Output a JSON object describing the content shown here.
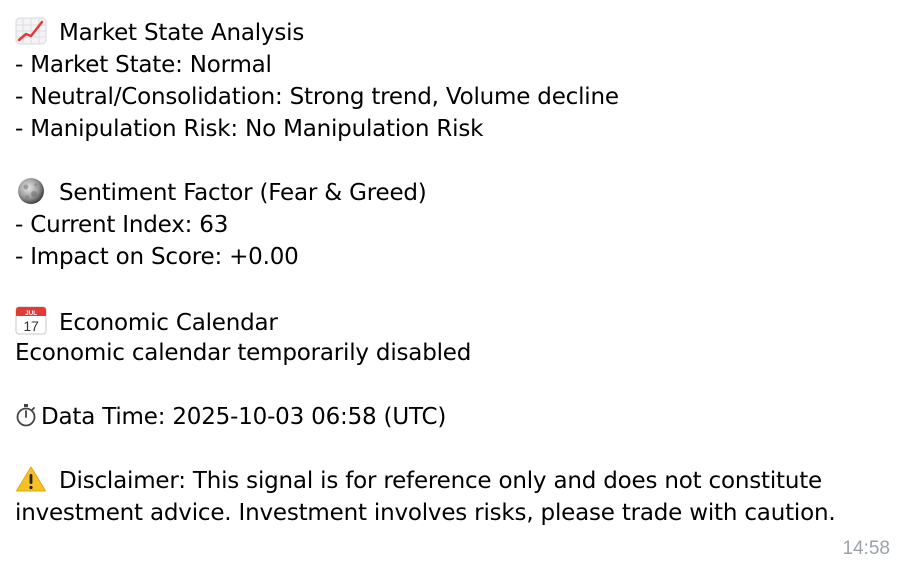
{
  "market": {
    "title": "Market State Analysis",
    "lines": [
      "- Market State: Normal",
      "- Neutral/Consolidation: Strong trend, Volume decline",
      "- Manipulation Risk: No Manipulation Risk"
    ],
    "icon": "chart-increasing-icon"
  },
  "sentiment": {
    "title": "Sentiment Factor (Fear & Greed)",
    "lines": [
      "- Current Index: 63",
      "- Impact on Score: +0.00"
    ],
    "icon": "moon-icon"
  },
  "calendar": {
    "title": "Economic Calendar",
    "text": "Economic calendar temporarily disabled",
    "icon": "calendar-icon",
    "icon_month": "JUL",
    "icon_day": "17"
  },
  "data_time": {
    "text": "Data Time: 2025-10-03 06:58 (UTC)",
    "icon": "stopwatch-icon"
  },
  "disclaimer": {
    "line1": "Disclaimer: This signal is for reference only and does not constitute",
    "line2": "investment advice. Investment involves risks, please trade with caution.",
    "icon": "warning-icon"
  },
  "timestamp": "14:58"
}
